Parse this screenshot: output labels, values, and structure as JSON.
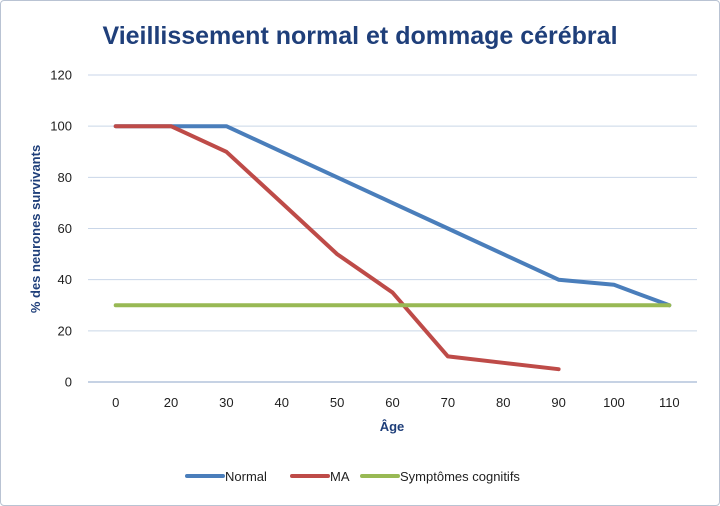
{
  "chart_data": {
    "type": "line",
    "title": "Vieillissement normal et dommage cérébral",
    "xlabel": "Âge",
    "ylabel": "% des  neurones survivants",
    "categories": [
      "0",
      "20",
      "30",
      "40",
      "50",
      "60",
      "70",
      "80",
      "90",
      "100",
      "110"
    ],
    "ylim": [
      0,
      120
    ],
    "yticks": [
      "0",
      "20",
      "40",
      "60",
      "80",
      "100",
      "120"
    ],
    "grid": true,
    "legend_position": "bottom",
    "series": [
      {
        "name": "Normal",
        "color": "#4a7ebb",
        "values": [
          100,
          100,
          100,
          90,
          80,
          70,
          60,
          50,
          40,
          38,
          30
        ]
      },
      {
        "name": "MA",
        "color": "#be4b48",
        "values": [
          100,
          100,
          90,
          70,
          50,
          35,
          10,
          7.5,
          5,
          null,
          null
        ]
      },
      {
        "name": "Symptômes cognitifs",
        "color": "#98b954",
        "values": [
          30,
          30,
          30,
          30,
          30,
          30,
          30,
          30,
          30,
          30,
          30
        ]
      }
    ]
  }
}
